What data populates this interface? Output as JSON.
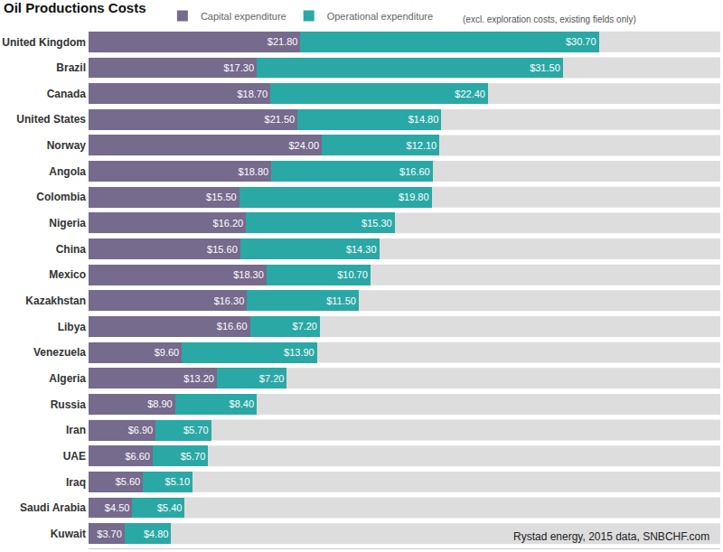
{
  "chart_data": {
    "type": "bar",
    "title": "Oil Productions Costs",
    "orientation": "horizontal",
    "stacked": true,
    "data_labels": true,
    "tick_labels": "y",
    "legend": "top",
    "grid": false,
    "xlim": [
      0,
      65
    ],
    "categories": [
      "United Kingdom",
      "Brazil",
      "Canada",
      "United States",
      "Norway",
      "Angola",
      "Colombia",
      "Nigeria",
      "China",
      "Mexico",
      "Kazakhstan",
      "Libya",
      "Venezuela",
      "Algeria",
      "Russia",
      "Iran",
      "UAE",
      "Iraq",
      "Saudi Arabia",
      "Kuwait"
    ],
    "series": [
      {
        "name": "Capital expenditure",
        "color": "#766a8d",
        "values": [
          21.8,
          17.3,
          18.7,
          21.5,
          24.0,
          18.8,
          15.5,
          16.2,
          15.6,
          18.3,
          16.3,
          16.6,
          9.6,
          13.2,
          8.9,
          6.9,
          6.6,
          5.6,
          4.5,
          3.7
        ],
        "value_labels": [
          "$21.80",
          "$17.30",
          "$18.70",
          "$21.50",
          "$24.00",
          "$18.80",
          "$15.50",
          "$16.20",
          "$15.60",
          "$18.30",
          "$16.30",
          "$16.60",
          "$9.60",
          "$13.20",
          "$8.90",
          "$6.90",
          "$6.60",
          "$5.60",
          "$4.50",
          "$3.70"
        ]
      },
      {
        "name": "Operational expenditure",
        "color": "#2aa8a6",
        "values": [
          30.7,
          31.5,
          22.4,
          14.8,
          12.1,
          16.6,
          19.8,
          15.3,
          14.3,
          10.7,
          11.5,
          7.2,
          13.9,
          7.2,
          8.4,
          5.7,
          5.7,
          5.1,
          5.4,
          4.8
        ],
        "value_labels": [
          "$30.70",
          "$31.50",
          "$22.40",
          "$14.80",
          "$12.10",
          "$16.60",
          "$19.80",
          "$15.30",
          "$14.30",
          "$10.70",
          "$11.50",
          "$7.20",
          "$13.90",
          "$7.20",
          "$8.40",
          "$5.70",
          "$5.70",
          "$5.10",
          "$5.40",
          "$4.80"
        ]
      }
    ],
    "annotations": [
      "(excl. exploration costs, existing fields only)",
      "Rystad energy, 2015 data, SNBCHF.com"
    ]
  }
}
